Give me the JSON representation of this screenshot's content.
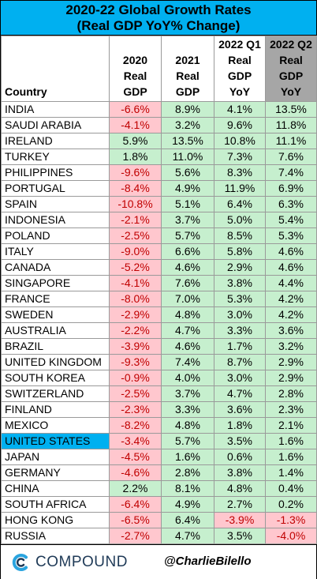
{
  "title": {
    "line1": "2020-22 Global Growth Rates",
    "line2": "(Real GDP YoY% Change)"
  },
  "headers": [
    {
      "lines": [
        "Country"
      ]
    },
    {
      "lines": [
        "2020",
        "Real",
        "GDP"
      ]
    },
    {
      "lines": [
        "2021",
        "Real",
        "GDP"
      ]
    },
    {
      "lines": [
        "2022 Q1",
        "Real",
        "GDP",
        "YoY"
      ]
    },
    {
      "lines": [
        "2022 Q2",
        "Real",
        "GDP",
        "YoY"
      ]
    }
  ],
  "rows": [
    {
      "country": "INDIA",
      "values": [
        "-6.6%",
        "8.9%",
        "4.1%",
        "13.5%"
      ]
    },
    {
      "country": "SAUDI ARABIA",
      "values": [
        "-4.1%",
        "3.2%",
        "9.6%",
        "11.8%"
      ]
    },
    {
      "country": "IRELAND",
      "values": [
        "5.9%",
        "13.5%",
        "10.8%",
        "11.1%"
      ]
    },
    {
      "country": "TURKEY",
      "values": [
        "1.8%",
        "11.0%",
        "7.3%",
        "7.6%"
      ]
    },
    {
      "country": "PHILIPPINES",
      "values": [
        "-9.6%",
        "5.6%",
        "8.3%",
        "7.4%"
      ]
    },
    {
      "country": "PORTUGAL",
      "values": [
        "-8.4%",
        "4.9%",
        "11.9%",
        "6.9%"
      ]
    },
    {
      "country": "SPAIN",
      "values": [
        "-10.8%",
        "5.1%",
        "6.4%",
        "6.3%"
      ]
    },
    {
      "country": "INDONESIA",
      "values": [
        "-2.1%",
        "3.7%",
        "5.0%",
        "5.4%"
      ]
    },
    {
      "country": "POLAND",
      "values": [
        "-2.5%",
        "5.7%",
        "8.5%",
        "5.3%"
      ]
    },
    {
      "country": "ITALY",
      "values": [
        "-9.0%",
        "6.6%",
        "5.8%",
        "4.6%"
      ]
    },
    {
      "country": "CANADA",
      "values": [
        "-5.2%",
        "4.6%",
        "2.9%",
        "4.6%"
      ]
    },
    {
      "country": "SINGAPORE",
      "values": [
        "-4.1%",
        "7.6%",
        "3.8%",
        "4.4%"
      ]
    },
    {
      "country": "FRANCE",
      "values": [
        "-8.0%",
        "7.0%",
        "5.3%",
        "4.2%"
      ]
    },
    {
      "country": "SWEDEN",
      "values": [
        "-2.9%",
        "4.8%",
        "3.0%",
        "4.2%"
      ]
    },
    {
      "country": "AUSTRALIA",
      "values": [
        "-2.2%",
        "4.7%",
        "3.3%",
        "3.6%"
      ]
    },
    {
      "country": "BRAZIL",
      "values": [
        "-3.9%",
        "4.6%",
        "1.7%",
        "3.2%"
      ]
    },
    {
      "country": "UNITED KINGDOM",
      "values": [
        "-9.3%",
        "7.4%",
        "8.7%",
        "2.9%"
      ]
    },
    {
      "country": "SOUTH KOREA",
      "values": [
        "-0.9%",
        "4.0%",
        "3.0%",
        "2.9%"
      ]
    },
    {
      "country": "SWITZERLAND",
      "values": [
        "-2.5%",
        "3.7%",
        "4.7%",
        "2.8%"
      ]
    },
    {
      "country": "FINLAND",
      "values": [
        "-2.3%",
        "3.3%",
        "3.6%",
        "2.3%"
      ]
    },
    {
      "country": "MEXICO",
      "values": [
        "-8.2%",
        "4.8%",
        "1.8%",
        "2.1%"
      ]
    },
    {
      "country": "UNITED STATES",
      "values": [
        "-3.4%",
        "5.7%",
        "3.5%",
        "1.6%"
      ],
      "highlight": true
    },
    {
      "country": "JAPAN",
      "values": [
        "-4.5%",
        "1.6%",
        "0.6%",
        "1.6%"
      ]
    },
    {
      "country": "GERMANY",
      "values": [
        "-4.6%",
        "2.8%",
        "3.8%",
        "1.4%"
      ]
    },
    {
      "country": "CHINA",
      "values": [
        "2.2%",
        "8.1%",
        "4.8%",
        "0.4%"
      ]
    },
    {
      "country": "SOUTH AFRICA",
      "values": [
        "-6.4%",
        "4.9%",
        "2.7%",
        "0.2%"
      ]
    },
    {
      "country": "HONG KONG",
      "values": [
        "-6.5%",
        "6.4%",
        "-3.9%",
        "-1.3%"
      ]
    },
    {
      "country": "RUSSIA",
      "values": [
        "-2.7%",
        "4.7%",
        "3.5%",
        "-4.0%"
      ]
    }
  ],
  "colors": {
    "title_bg": "#00b0f0",
    "positive_fill": "#c6efce",
    "negative_fill": "#ffc7ce",
    "negative_text": "#c00000",
    "highlight": "#00b0f0",
    "q2_header_bg": "#a6a6a6"
  },
  "footer": {
    "logo_icon": "compound-logo-icon",
    "logo_text": "COMPOUND",
    "handle": "@CharlieBilello"
  }
}
